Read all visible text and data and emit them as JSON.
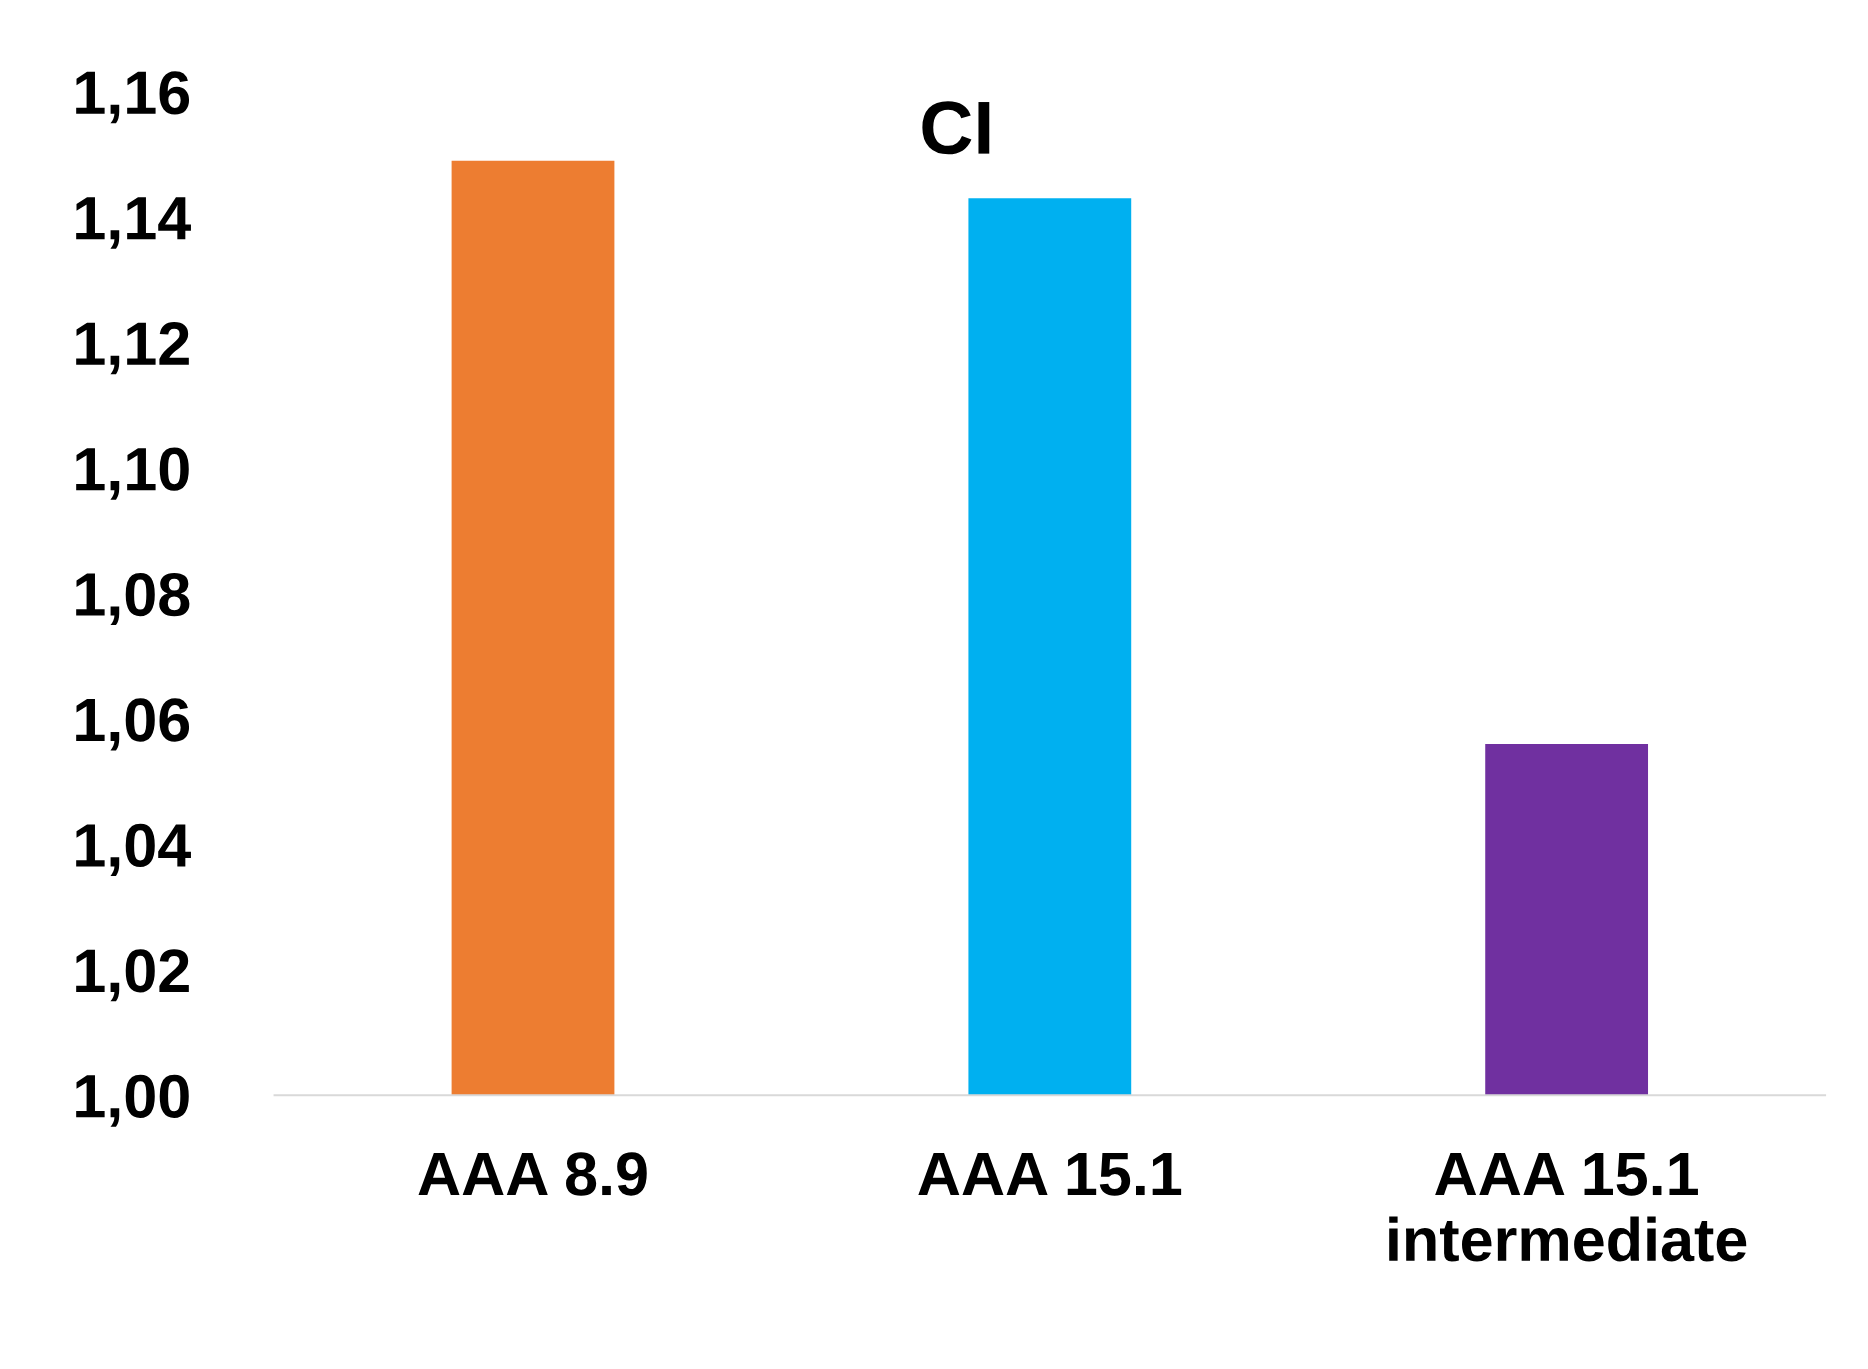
{
  "chart_data": {
    "type": "bar",
    "title": "CI",
    "categories": [
      "AAA 8.9",
      "AAA 15.1",
      "AAA 15.1\nintermediate"
    ],
    "values": [
      1.149,
      1.143,
      1.056
    ],
    "colors": [
      "#ed7d31",
      "#00b0f0",
      "#7030a0"
    ],
    "ylim": [
      1.0,
      1.16
    ],
    "yticks": [
      {
        "value": 1.0,
        "label": "1,00"
      },
      {
        "value": 1.02,
        "label": "1,02"
      },
      {
        "value": 1.04,
        "label": "1,04"
      },
      {
        "value": 1.06,
        "label": "1,06"
      },
      {
        "value": 1.08,
        "label": "1,08"
      },
      {
        "value": 1.1,
        "label": "1,10"
      },
      {
        "value": 1.12,
        "label": "1,12"
      },
      {
        "value": 1.14,
        "label": "1,14"
      },
      {
        "value": 1.16,
        "label": "1,16"
      }
    ],
    "grid": false,
    "legend": false
  }
}
